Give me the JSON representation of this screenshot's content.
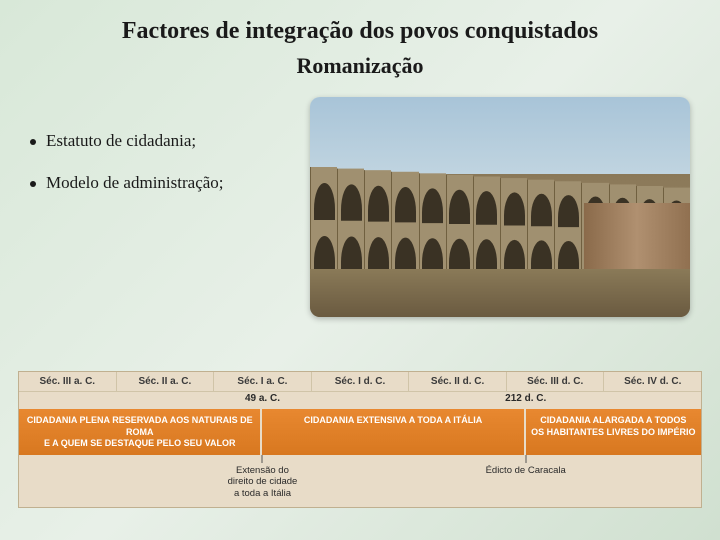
{
  "title": "Factores de integração dos povos conquistados",
  "subtitle": "Romanização",
  "bullets": [
    "Estatuto de cidadania;",
    "Modelo de administração;"
  ],
  "photo": {
    "alt": "aqueduct-photo",
    "sky_color": "#a8c4d8",
    "stone_color": "#a09070",
    "arch_shadow": "#3a3224",
    "arch_count": 14
  },
  "timeline": {
    "background": "#e8dcc8",
    "bar_color_start": "#e88830",
    "bar_color_end": "#d87820",
    "header_fontsize": 10,
    "bar_fontsize": 9,
    "note_fontsize": 9.5,
    "centuries": [
      "Séc. III a. C.",
      "Séc. II a. C.",
      "Séc. I a. C.",
      "Séc. I d. C.",
      "Séc. II d. C.",
      "Séc. III d. C.",
      "Séc. IV d. C."
    ],
    "key_dates": [
      {
        "label": "49 a. C.",
        "position_pct": 35.7
      },
      {
        "label": "212 d. C.",
        "position_pct": 74.3
      }
    ],
    "bars": [
      {
        "text": "CIDADANIA PLENA RESERVADA AOS NATURAIS DE ROMA\nE A QUEM SE DESTAQUE PELO SEU VALOR",
        "width_pct": 35.7
      },
      {
        "text": "CIDADANIA EXTENSIVA A TODA A ITÁLIA",
        "width_pct": 38.6
      },
      {
        "text": "CIDADANIA ALARGADA A TODOS\nOS HABITANTES LIVRES DO IMPÉRIO",
        "width_pct": 25.7
      }
    ],
    "notes": [
      {
        "text": "Extensão do\ndireito de cidade\na toda a Itália",
        "position_pct": 35.7
      },
      {
        "text": "Édicto de Caracala",
        "position_pct": 74.3
      }
    ]
  }
}
